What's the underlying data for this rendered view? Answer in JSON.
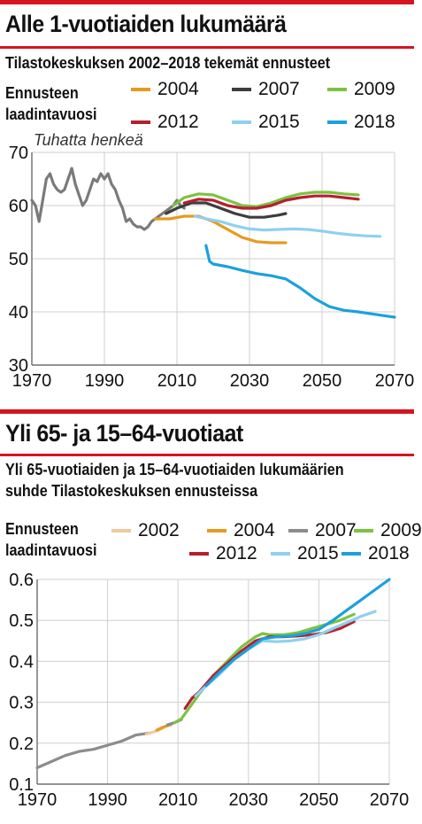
{
  "chart_data": [
    {
      "type": "line",
      "title": "Alle 1-vuotiaiden lukumäärä",
      "subtitle": "Tilastokeskuksen 2002–2018 tekemät ennusteet",
      "legend_title": "Ennusteen laadintavuosi",
      "unit_label": "Tuhatta henkeä",
      "xlim": [
        1970,
        2070
      ],
      "ylim": [
        30,
        70
      ],
      "x_ticks": [
        "1970",
        "1990",
        "2010",
        "2030",
        "2050",
        "2070"
      ],
      "y_ticks": [
        "70",
        "60",
        "50",
        "40",
        "30"
      ],
      "grid": true,
      "series": [
        {
          "name": "",
          "color": "#7a7a7a",
          "x": [
            1970,
            1971,
            1972,
            1973,
            1974,
            1975,
            1976,
            1977,
            1978,
            1979,
            1980,
            1981,
            1982,
            1983,
            1984,
            1985,
            1986,
            1987,
            1988,
            1989,
            1990,
            1991,
            1992,
            1993,
            1994,
            1995,
            1996,
            1997,
            1998,
            1999,
            2000,
            2001,
            2002,
            2003,
            2004,
            2005,
            2006,
            2007,
            2008,
            2009,
            2010,
            2011,
            2012
          ],
          "y": [
            61,
            60,
            57,
            61,
            65,
            66,
            64,
            63,
            62.5,
            63,
            65,
            67,
            64,
            62,
            60,
            61,
            63,
            65,
            64.5,
            66,
            65,
            66,
            64,
            63,
            61,
            59.5,
            57,
            57.5,
            56.5,
            56,
            56,
            55.5,
            56,
            57,
            57.5,
            58,
            58.5,
            59,
            59.5,
            60,
            61,
            60,
            59.5
          ]
        },
        {
          "name": "2004",
          "color": "#e69a1e",
          "x": [
            2004,
            2008,
            2012,
            2016,
            2020,
            2024,
            2028,
            2032,
            2036,
            2040
          ],
          "y": [
            57.5,
            57.5,
            58,
            58,
            57,
            55.5,
            54,
            53.2,
            53,
            53
          ]
        },
        {
          "name": "2007",
          "color": "#3d3d3d",
          "x": [
            2007,
            2010,
            2014,
            2018,
            2022,
            2026,
            2030,
            2034,
            2038,
            2040
          ],
          "y": [
            58.5,
            59.5,
            60.5,
            60.5,
            59.5,
            58.5,
            57.8,
            57.8,
            58.2,
            58.5
          ]
        },
        {
          "name": "2009",
          "color": "#7cc242",
          "x": [
            2009,
            2012,
            2016,
            2020,
            2024,
            2028,
            2032,
            2036,
            2040,
            2044,
            2048,
            2052,
            2056,
            2060
          ],
          "y": [
            60,
            61.5,
            62.2,
            62,
            61,
            60,
            59.8,
            60.5,
            61.5,
            62.2,
            62.5,
            62.5,
            62.2,
            62
          ]
        },
        {
          "name": "2012",
          "color": "#b5202f",
          "x": [
            2012,
            2016,
            2020,
            2024,
            2028,
            2032,
            2036,
            2040,
            2044,
            2048,
            2052,
            2056,
            2060
          ],
          "y": [
            60.5,
            61.2,
            61,
            60,
            59.5,
            59.5,
            60,
            61,
            61.5,
            61.8,
            61.8,
            61.5,
            61.2
          ]
        },
        {
          "name": "2015",
          "color": "#8fd0ef",
          "x": [
            2015,
            2018,
            2022,
            2026,
            2030,
            2034,
            2038,
            2042,
            2046,
            2050,
            2054,
            2058,
            2062,
            2066
          ],
          "y": [
            58,
            57.5,
            57,
            56.2,
            55.6,
            55.4,
            55.5,
            55.6,
            55.5,
            55.2,
            54.8,
            54.5,
            54.3,
            54.2
          ]
        },
        {
          "name": "2018",
          "color": "#1aa1db",
          "x": [
            2018,
            2019,
            2020,
            2024,
            2028,
            2032,
            2036,
            2040,
            2044,
            2048,
            2052,
            2056,
            2060,
            2064,
            2068,
            2070
          ],
          "y": [
            52.5,
            49.5,
            49,
            48.5,
            47.8,
            47.2,
            46.8,
            46.2,
            44.5,
            42.5,
            41,
            40.3,
            40,
            39.6,
            39.2,
            39
          ]
        }
      ]
    },
    {
      "type": "line",
      "title": "Yli 65- ja 15–64-vuotiaat",
      "subtitle_lines": [
        "Yli 65-vuotiaiden ja 15–64-vuotiaiden lukumäärien",
        "suhde Tilastokeskuksen ennusteissa"
      ],
      "legend_title": "Ennusteen laadintavuosi",
      "xlim": [
        1970,
        2070
      ],
      "ylim": [
        0.1,
        0.6
      ],
      "x_ticks": [
        "1970",
        "1990",
        "2010",
        "2030",
        "2050",
        "2070"
      ],
      "y_ticks": [
        "0.6",
        "0.5",
        "0.4",
        "0.3",
        "0.2",
        "0.1"
      ],
      "grid": true,
      "series": [
        {
          "name": "",
          "color": "#8c8c8c",
          "x": [
            1970,
            1974,
            1978,
            1982,
            1986,
            1990,
            1994,
            1998,
            2002
          ],
          "y": [
            0.14,
            0.155,
            0.17,
            0.18,
            0.185,
            0.195,
            0.205,
            0.22,
            0.225
          ]
        },
        {
          "name": "2002",
          "color": "#f2c9a0",
          "x": [
            2001,
            2004,
            2006
          ],
          "y": [
            0.222,
            0.23,
            0.238
          ]
        },
        {
          "name": "2004",
          "color": "#e69a1e",
          "x": [
            2004,
            2006,
            2008
          ],
          "y": [
            0.232,
            0.24,
            0.245
          ]
        },
        {
          "name": "2007",
          "color": "#8c8c8c",
          "x": [
            2007,
            2009,
            2011
          ],
          "y": [
            0.245,
            0.25,
            0.258
          ]
        },
        {
          "name": "2009",
          "color": "#7cc242",
          "x": [
            2009,
            2011,
            2016,
            2020,
            2024,
            2028,
            2032,
            2034,
            2036,
            2040,
            2044,
            2048,
            2052,
            2056,
            2060
          ],
          "y": [
            0.25,
            0.26,
            0.32,
            0.365,
            0.4,
            0.435,
            0.46,
            0.468,
            0.465,
            0.465,
            0.47,
            0.48,
            0.49,
            0.5,
            0.515
          ]
        },
        {
          "name": "2012",
          "color": "#b5202f",
          "x": [
            2012,
            2014,
            2016,
            2020,
            2024,
            2028,
            2032,
            2036,
            2040,
            2044,
            2048,
            2052,
            2056,
            2060
          ],
          "y": [
            0.285,
            0.31,
            0.325,
            0.365,
            0.395,
            0.425,
            0.45,
            0.46,
            0.46,
            0.462,
            0.465,
            0.47,
            0.48,
            0.497
          ]
        },
        {
          "name": "2015",
          "color": "#8fd0ef",
          "x": [
            2015,
            2018,
            2022,
            2026,
            2030,
            2034,
            2038,
            2042,
            2046,
            2050,
            2054,
            2058,
            2062,
            2066
          ],
          "y": [
            0.315,
            0.34,
            0.37,
            0.405,
            0.43,
            0.45,
            0.448,
            0.45,
            0.455,
            0.465,
            0.48,
            0.495,
            0.51,
            0.522
          ]
        },
        {
          "name": "2018",
          "color": "#1aa1db",
          "x": [
            2018,
            2022,
            2026,
            2030,
            2034,
            2038,
            2042,
            2046,
            2050,
            2054,
            2058,
            2062,
            2066,
            2070
          ],
          "y": [
            0.34,
            0.375,
            0.405,
            0.43,
            0.455,
            0.46,
            0.462,
            0.468,
            0.478,
            0.5,
            0.525,
            0.55,
            0.575,
            0.6
          ]
        }
      ]
    }
  ],
  "legend1": [
    {
      "label": "2004",
      "color": "#e69a1e"
    },
    {
      "label": "2007",
      "color": "#3d3d3d"
    },
    {
      "label": "2009",
      "color": "#7cc242"
    },
    {
      "label": "2012",
      "color": "#b5202f"
    },
    {
      "label": "2015",
      "color": "#8fd0ef"
    },
    {
      "label": "2018",
      "color": "#1aa1db"
    }
  ],
  "legend2": [
    {
      "label": "2002",
      "color": "#f2c9a0"
    },
    {
      "label": "2004",
      "color": "#e69a1e"
    },
    {
      "label": "2007",
      "color": "#8c8c8c"
    },
    {
      "label": "2009",
      "color": "#7cc242"
    },
    {
      "label": "2012",
      "color": "#b5202f"
    },
    {
      "label": "2015",
      "color": "#8fd0ef"
    },
    {
      "label": "2018",
      "color": "#1aa1db"
    }
  ],
  "colors": {
    "accent": "#d6141f",
    "grid": "#cfcfcf"
  }
}
